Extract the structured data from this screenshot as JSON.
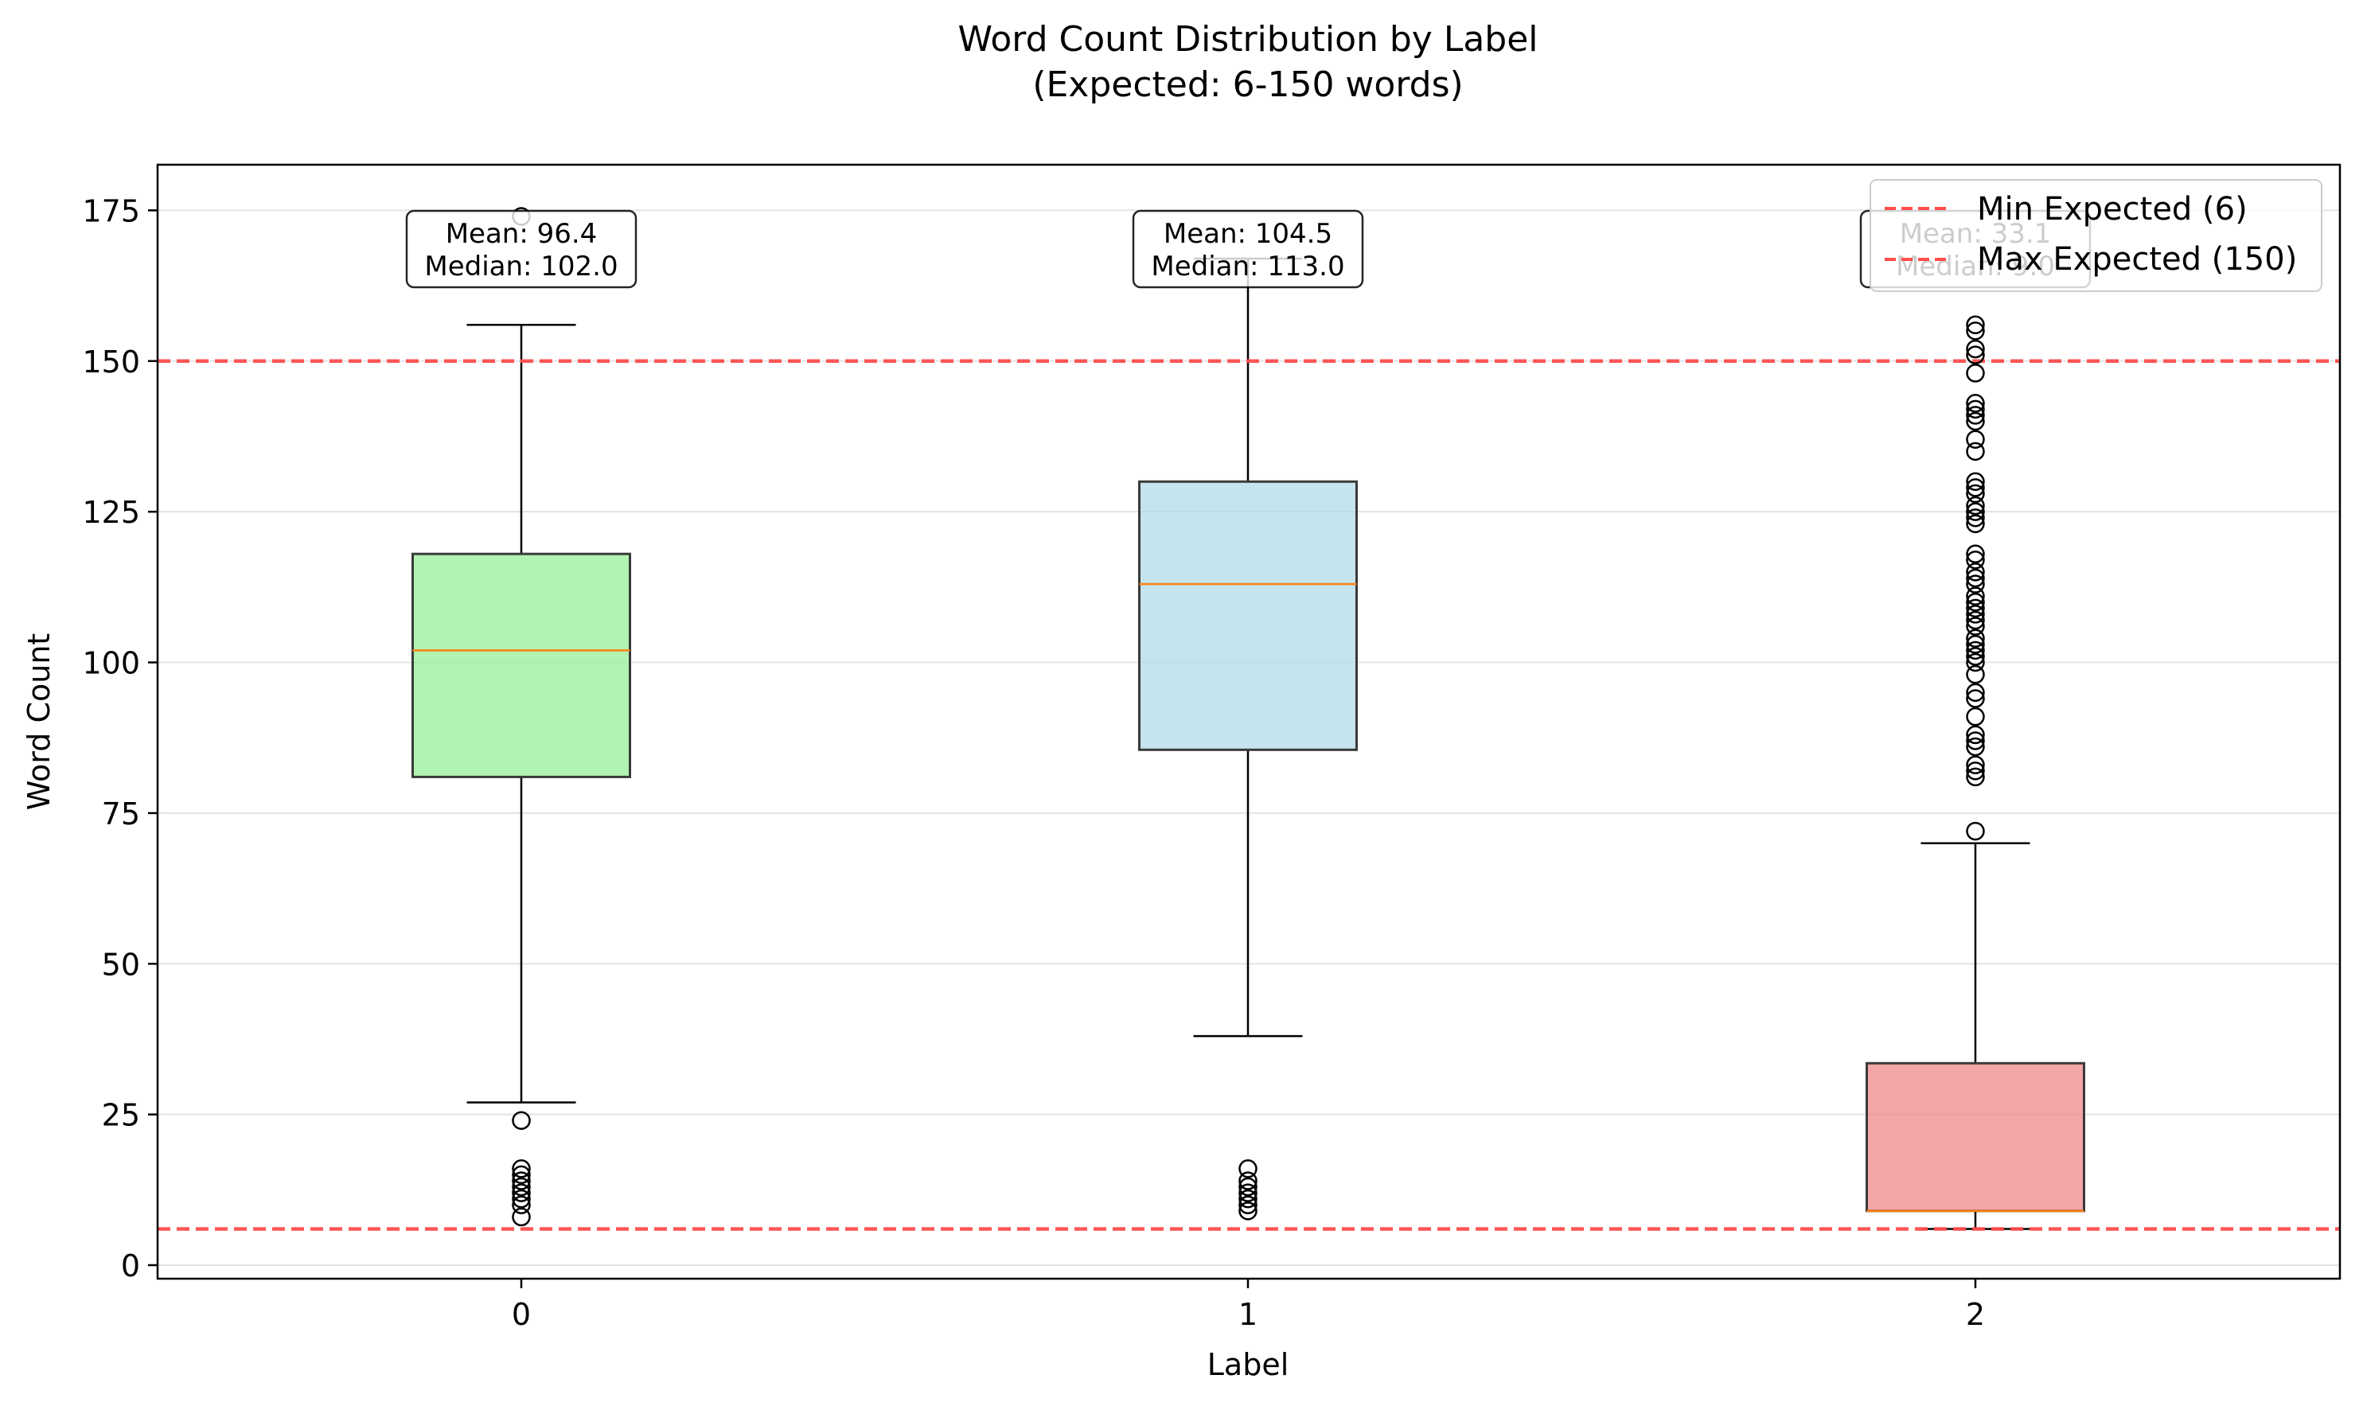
{
  "chart_data": {
    "type": "box",
    "title": "Word Count Distribution by Label",
    "subtitle": "(Expected: 6-150 words)",
    "xlabel": "Label",
    "ylabel": "Word Count",
    "ylim": [
      -2,
      182.5
    ],
    "yticks": [
      0,
      25,
      50,
      75,
      100,
      125,
      150,
      175
    ],
    "grid": "y",
    "legend_position": "top-right",
    "reference_lines": [
      {
        "name": "Min Expected (6)",
        "value": 6,
        "color": "#ff4d4d",
        "style": "dashed"
      },
      {
        "name": "Max Expected (150)",
        "value": 150,
        "color": "#ff4d4d",
        "style": "dashed"
      }
    ],
    "median_color": "#ff7f0e",
    "box_edge_color": "#3a3a3a",
    "categories": [
      "0",
      "1",
      "2"
    ],
    "boxes": [
      {
        "label": "0",
        "color": "#90ee90",
        "whisker_low": 27,
        "q1": 81,
        "median": 102,
        "q3": 118,
        "whisker_high": 156,
        "outliers": [
          174,
          24,
          16,
          15,
          14,
          13,
          12,
          11,
          10,
          8
        ],
        "annotation": {
          "mean": "Mean: 96.4",
          "median": "Median: 102.0"
        }
      },
      {
        "label": "1",
        "color": "#add8e6",
        "whisker_low": 38,
        "q1": 85.5,
        "median": 113,
        "q3": 130,
        "whisker_high": 167,
        "outliers": [
          16,
          14,
          13,
          12,
          11,
          10,
          9
        ],
        "annotation": {
          "mean": "Mean: 104.5",
          "median": "Median: 113.0"
        }
      },
      {
        "label": "2",
        "color": "#f08080",
        "whisker_low": 6,
        "q1": 9,
        "median": 9,
        "q3": 33.5,
        "whisker_high": 70,
        "outliers": [
          72,
          81,
          82,
          83,
          86,
          87,
          88,
          91,
          94,
          95,
          98,
          100,
          101,
          102,
          103,
          104,
          106,
          107,
          108,
          109,
          110,
          111,
          113,
          114,
          115,
          117,
          118,
          123,
          124,
          125,
          126,
          128,
          129,
          130,
          135,
          137,
          140,
          141,
          142,
          143,
          148,
          151,
          152,
          155,
          156
        ],
        "annotation": {
          "mean": "Mean: 33.1",
          "median": "Median: 9.0"
        }
      }
    ]
  }
}
